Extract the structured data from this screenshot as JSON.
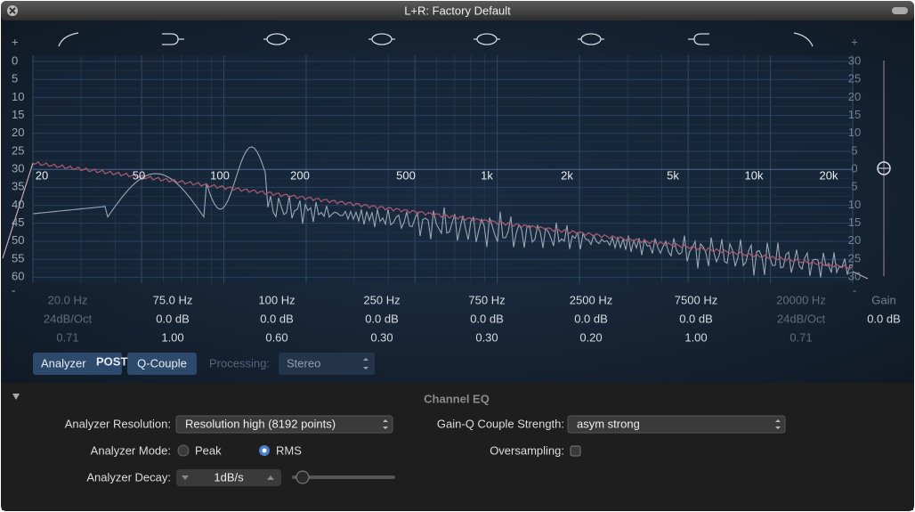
{
  "title": "L+R: Factory Default",
  "graph": {
    "left_scale": [
      "+",
      "0",
      "5",
      "10",
      "15",
      "20",
      "25",
      "30",
      "35",
      "40",
      "45",
      "50",
      "55",
      "60",
      "-"
    ],
    "right_scale": [
      "+",
      "30",
      "25",
      "20",
      "15",
      "10",
      "5",
      "0",
      "5",
      "10",
      "15",
      "20",
      "25",
      "30",
      "-"
    ],
    "freq_labels": [
      "20",
      "50",
      "100",
      "200",
      "500",
      "1k",
      "2k",
      "5k",
      "10k",
      "20k"
    ]
  },
  "bands": [
    {
      "freq": "20.0 Hz",
      "gain": "24dB/Oct",
      "q": "0.71"
    },
    {
      "freq": "75.0 Hz",
      "gain": "0.0 dB",
      "q": "1.00"
    },
    {
      "freq": "100 Hz",
      "gain": "0.0 dB",
      "q": "0.60"
    },
    {
      "freq": "250 Hz",
      "gain": "0.0 dB",
      "q": "0.30"
    },
    {
      "freq": "750 Hz",
      "gain": "0.0 dB",
      "q": "0.30"
    },
    {
      "freq": "2500 Hz",
      "gain": "0.0 dB",
      "q": "0.20"
    },
    {
      "freq": "7500 Hz",
      "gain": "0.0 dB",
      "q": "1.00"
    },
    {
      "freq": "20000 Hz",
      "gain": "24dB/Oct",
      "q": "0.71"
    }
  ],
  "gain": {
    "label": "Gain",
    "value": "0.0 dB"
  },
  "controls": {
    "analyzer": "Analyzer",
    "post": "POST",
    "q_couple": "Q-Couple",
    "processing_label": "Processing:",
    "processing_value": "Stereo"
  },
  "settings": {
    "title": "Channel EQ",
    "analyzer_resolution": {
      "label": "Analyzer Resolution:",
      "value": "Resolution high (8192 points)"
    },
    "gain_q": {
      "label": "Gain-Q Couple Strength:",
      "value": "asym strong"
    },
    "analyzer_mode": {
      "label": "Analyzer Mode:",
      "options": [
        "Peak",
        "RMS"
      ]
    },
    "oversampling": {
      "label": "Oversampling:"
    },
    "analyzer_decay": {
      "label": "Analyzer Decay:",
      "value": "1dB/s"
    }
  }
}
